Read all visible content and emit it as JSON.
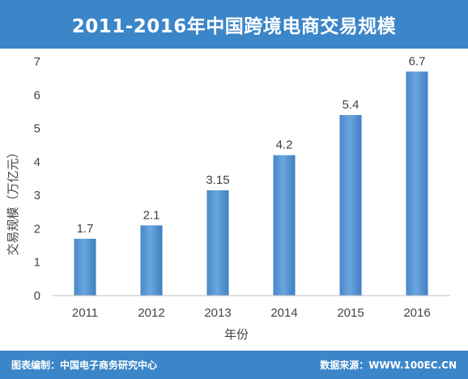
{
  "header": {
    "title": "2011-2016年中国跨境电商交易规模"
  },
  "footer": {
    "left": "图表编制：中国电子商务研究中心",
    "right": "数据来源：WWW.100EC.CN"
  },
  "chart_data": {
    "type": "bar",
    "title": "2011-2016年中国跨境电商交易规模",
    "xlabel": "年份",
    "ylabel": "交易规模（万亿元）",
    "categories": [
      "2011",
      "2012",
      "2013",
      "2014",
      "2015",
      "2016"
    ],
    "values": [
      1.7,
      2.1,
      3.15,
      4.2,
      5.4,
      6.7
    ],
    "data_labels": [
      "1.7",
      "2.1",
      "3.15",
      "4.2",
      "5.4",
      "6.7"
    ],
    "ylim": [
      0,
      7
    ],
    "yticks": [
      "0",
      "1",
      "2",
      "3",
      "4",
      "5",
      "6",
      "7"
    ],
    "grid": false,
    "legend": "none",
    "bar_color": "#5b9bd5"
  }
}
